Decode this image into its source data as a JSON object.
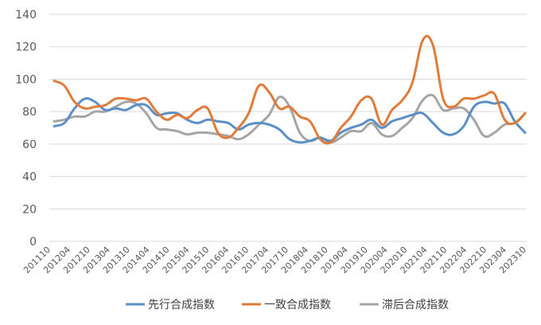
{
  "chart_data": {
    "type": "line",
    "ylim": [
      0,
      140
    ],
    "yticks": [
      "0",
      "20",
      "40",
      "60",
      "80",
      "100",
      "120",
      "140"
    ],
    "grid": true,
    "legend_position": "bottom",
    "x_tick_labels": [
      "201110",
      "201204",
      "201210",
      "201304",
      "201310",
      "201404",
      "201410",
      "201504",
      "201510",
      "201604",
      "201610",
      "201704",
      "201710",
      "201804",
      "201810",
      "201904",
      "201910",
      "202004",
      "202010",
      "202104",
      "202110",
      "202204",
      "202210",
      "202304",
      "202310"
    ],
    "series": [
      {
        "name": "先行合成指数",
        "color": "#5b8fc7",
        "values": [
          71,
          73,
          82,
          88,
          86,
          81,
          82,
          81,
          84,
          84,
          78,
          79,
          79,
          75,
          73,
          75,
          74,
          73,
          69,
          72,
          73,
          72,
          69,
          63,
          61,
          62,
          64,
          62,
          67,
          70,
          72,
          75,
          70,
          74,
          76,
          78,
          79,
          73,
          67,
          66,
          71,
          83,
          86,
          85,
          85,
          74,
          67
        ]
      },
      {
        "name": "一致合成指数",
        "color": "#e07b39",
        "values": [
          99,
          96,
          86,
          82,
          83,
          84,
          88,
          88,
          87,
          88,
          80,
          75,
          78,
          76,
          81,
          82,
          67,
          64,
          70,
          79,
          96,
          92,
          82,
          83,
          77,
          74,
          63,
          61,
          70,
          77,
          87,
          88,
          72,
          81,
          87,
          98,
          124,
          121,
          88,
          83,
          88,
          88,
          90,
          91,
          75,
          73,
          79
        ]
      },
      {
        "name": "滞后合成指数",
        "color": "#a5a5a5",
        "values": [
          74,
          75,
          77,
          77,
          80,
          80,
          83,
          86,
          85,
          79,
          70,
          69,
          68,
          66,
          67,
          67,
          66,
          65,
          63,
          66,
          72,
          78,
          89,
          83,
          67,
          62,
          64,
          61,
          64,
          68,
          68,
          73,
          66,
          65,
          70,
          76,
          87,
          90,
          81,
          82,
          82,
          75,
          65,
          67,
          72,
          73,
          79
        ]
      }
    ]
  }
}
